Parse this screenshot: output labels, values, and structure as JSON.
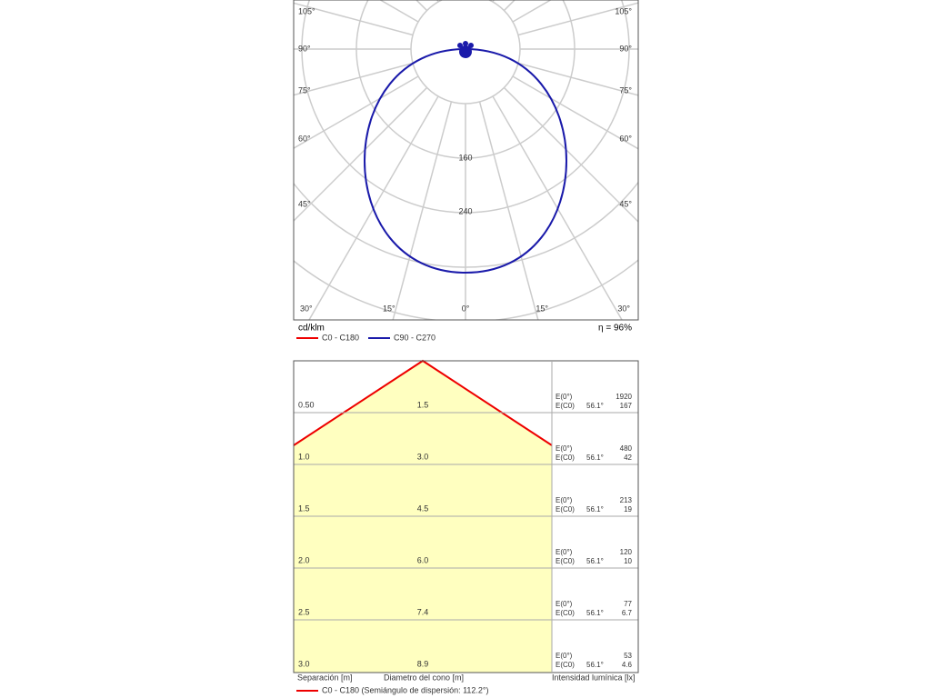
{
  "polar": {
    "angle_labels_left": [
      "105°",
      "90°",
      "75°",
      "60°",
      "45°",
      "30°",
      "15°"
    ],
    "center_label": "0°",
    "angle_labels_right": [
      "105°",
      "90°",
      "75°",
      "60°",
      "45°",
      "30°",
      "15°"
    ],
    "ring_labels": [
      "160",
      "240"
    ],
    "unit": "cd/klm",
    "efficiency": "η = 96%",
    "legend": [
      "C0 - C180",
      "C90 - C270"
    ]
  },
  "table": {
    "rows": [
      [
        "0.50",
        "1.5",
        "E(0°)",
        "1920",
        "E(C0)",
        "56.1°",
        "167"
      ],
      [
        "1.0",
        "3.0",
        "E(0°)",
        "480",
        "E(C0)",
        "56.1°",
        "42"
      ],
      [
        "1.5",
        "4.5",
        "E(0°)",
        "213",
        "E(C0)",
        "56.1°",
        "19"
      ],
      [
        "2.0",
        "6.0",
        "E(0°)",
        "120",
        "E(C0)",
        "56.1°",
        "10"
      ],
      [
        "2.5",
        "7.4",
        "E(0°)",
        "77",
        "E(C0)",
        "56.1°",
        "6.7"
      ],
      [
        "3.0",
        "8.9",
        "E(0°)",
        "53",
        "E(C0)",
        "56.1°",
        "4.6"
      ]
    ],
    "headers": [
      "Separación [m]",
      "Diametro del cono [m]",
      "Intensidad lumínica [lx]"
    ],
    "legend": "C0 - C180 (Semiángulo de dispersión: 112.2°)"
  }
}
